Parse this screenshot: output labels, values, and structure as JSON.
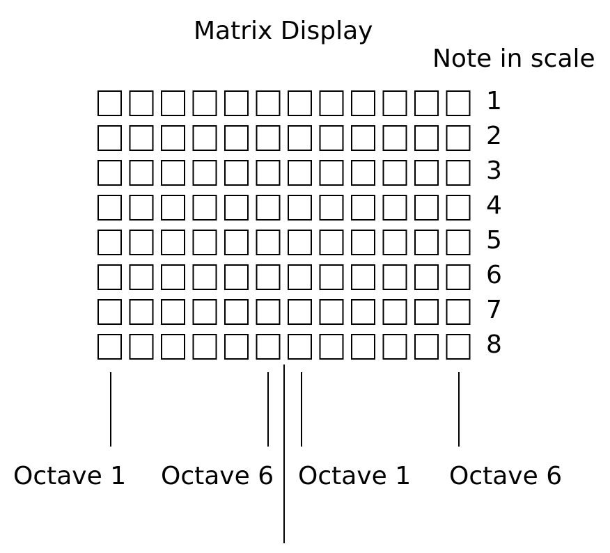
{
  "title": "Matrix Display",
  "column_header": "Note in scale",
  "matrix": {
    "rows": 8,
    "columns": 12
  },
  "row_labels": [
    "1",
    "2",
    "3",
    "4",
    "5",
    "6",
    "7",
    "8"
  ],
  "octave_labels": [
    "Octave 1",
    "Octave 6",
    "Octave 1",
    "Octave 6"
  ],
  "colors": {
    "line": "#000000",
    "cell_fill": "#ffffff",
    "background": "#ffffff"
  }
}
